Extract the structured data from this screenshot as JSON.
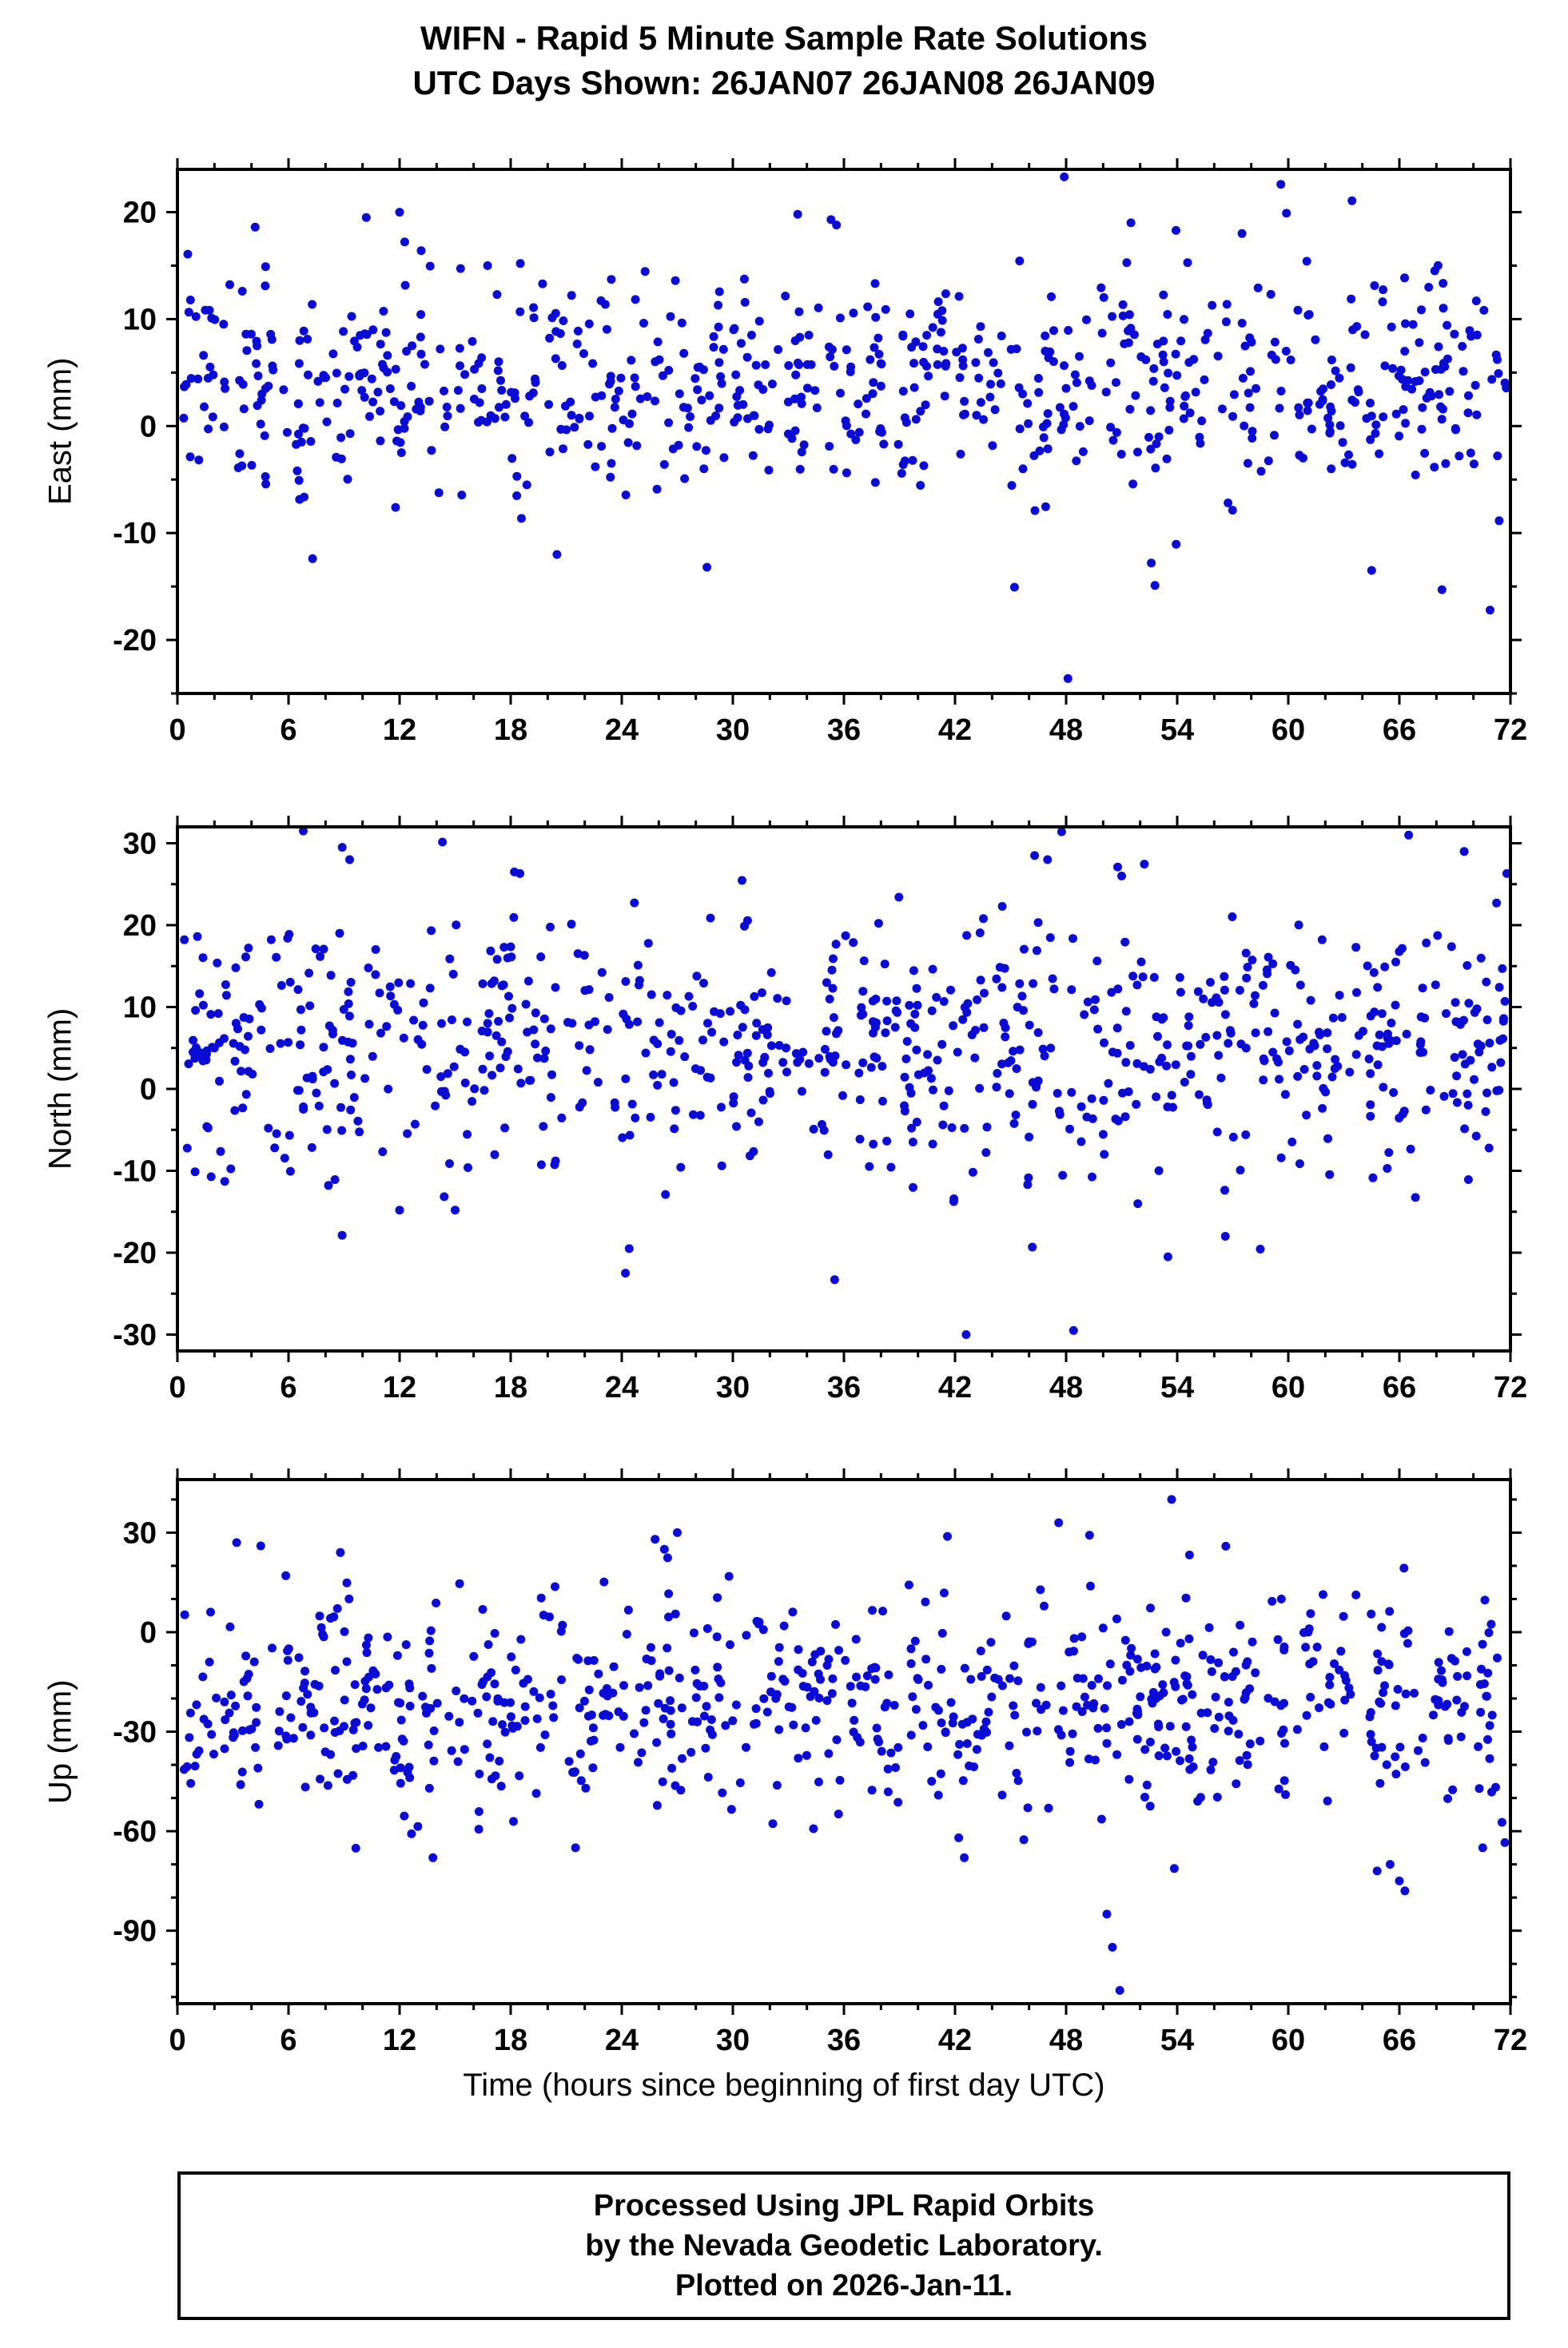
{
  "title": {
    "line1": "WIFN - Rapid 5 Minute Sample Rate Solutions",
    "line2": "UTC Days Shown:  26JAN07 26JAN08 26JAN09"
  },
  "xlabel": "Time (hours since beginning of first day UTC)",
  "footer": {
    "line1": "Processed Using JPL Rapid Orbits",
    "line2": "by the Nevada Geodetic Laboratory.",
    "line3": "Plotted on 2026-Jan-11."
  },
  "point_color": "#0b0bd6",
  "chart_data": [
    {
      "type": "scatter",
      "ylabel": "East (mm)",
      "xlim": [
        0,
        72
      ],
      "ylim": [
        -25,
        24
      ],
      "xticks": [
        0,
        6,
        12,
        18,
        24,
        30,
        36,
        42,
        48,
        54,
        60,
        66,
        72
      ],
      "xminor_step": 2,
      "yticks": [
        -20,
        -10,
        0,
        10,
        20
      ],
      "yminor_step": 5,
      "n": 740,
      "mean": 3.8,
      "sd": 5.0,
      "seed": 11,
      "outliers": [
        [
          47.9,
          23.3
        ],
        [
          59.6,
          22.6
        ],
        [
          48.1,
          -23.6
        ],
        [
          7.3,
          -12.4
        ],
        [
          20.5,
          -12.0
        ],
        [
          28.6,
          -13.2
        ],
        [
          52.6,
          -12.8
        ],
        [
          52.8,
          -14.9
        ],
        [
          68.3,
          -15.3
        ],
        [
          70.9,
          -17.2
        ],
        [
          64.5,
          -13.5
        ],
        [
          10.2,
          19.5
        ],
        [
          12.0,
          20.0
        ],
        [
          4.2,
          18.6
        ],
        [
          33.5,
          19.8
        ],
        [
          35.3,
          19.3
        ],
        [
          35.6,
          18.8
        ],
        [
          51.5,
          19.0
        ],
        [
          57.5,
          18.0
        ],
        [
          59.9,
          19.9
        ]
      ]
    },
    {
      "type": "scatter",
      "ylabel": "North (mm)",
      "xlim": [
        0,
        72
      ],
      "ylim": [
        -32,
        32
      ],
      "xticks": [
        0,
        6,
        12,
        18,
        24,
        30,
        36,
        42,
        48,
        54,
        60,
        66,
        72
      ],
      "xminor_step": 2,
      "yticks": [
        -30,
        -20,
        -10,
        0,
        10,
        20,
        30
      ],
      "yminor_step": 5,
      "n": 780,
      "mean": 5.5,
      "sd": 7.5,
      "seed": 22,
      "outliers": [
        [
          6.8,
          31.5
        ],
        [
          8.9,
          29.5
        ],
        [
          9.3,
          28.0
        ],
        [
          18.2,
          26.5
        ],
        [
          18.5,
          26.3
        ],
        [
          46.3,
          28.5
        ],
        [
          47.0,
          28.0
        ],
        [
          51.0,
          26.0
        ],
        [
          24.2,
          -22.5
        ],
        [
          24.4,
          -19.5
        ],
        [
          35.5,
          -23.3
        ],
        [
          42.6,
          -30.0
        ],
        [
          48.4,
          -29.5
        ],
        [
          53.5,
          -20.5
        ],
        [
          56.6,
          -18.0
        ],
        [
          12.0,
          -14.8
        ],
        [
          15.0,
          -14.8
        ],
        [
          71.8,
          26.3
        ],
        [
          66.5,
          31.0
        ],
        [
          69.5,
          29.0
        ]
      ]
    },
    {
      "type": "scatter",
      "ylabel": "Up (mm)",
      "xlim": [
        0,
        72
      ],
      "ylim": [
        -112,
        46
      ],
      "xticks": [
        0,
        6,
        12,
        18,
        24,
        30,
        36,
        42,
        48,
        54,
        60,
        66,
        72
      ],
      "xminor_step": 2,
      "yticks": [
        -90,
        -60,
        -30,
        0,
        30
      ],
      "yminor_step": 10,
      "n": 760,
      "mean": -22,
      "sd": 16,
      "seed": 33,
      "outliers": [
        [
          50.9,
          -108
        ],
        [
          50.5,
          -95
        ],
        [
          53.7,
          40
        ],
        [
          47.6,
          33
        ],
        [
          25.8,
          28
        ],
        [
          27.0,
          30
        ],
        [
          3.2,
          27
        ],
        [
          8.8,
          24
        ],
        [
          66.0,
          -75
        ],
        [
          66.3,
          -78
        ],
        [
          13.8,
          -68
        ],
        [
          21.5,
          -65
        ],
        [
          42.5,
          -68
        ],
        [
          50.2,
          -85
        ],
        [
          70.5,
          -65
        ],
        [
          64.8,
          -72
        ],
        [
          4.5,
          26
        ],
        [
          26.3,
          25
        ],
        [
          42.2,
          -62
        ],
        [
          65.5,
          -70
        ]
      ]
    }
  ]
}
